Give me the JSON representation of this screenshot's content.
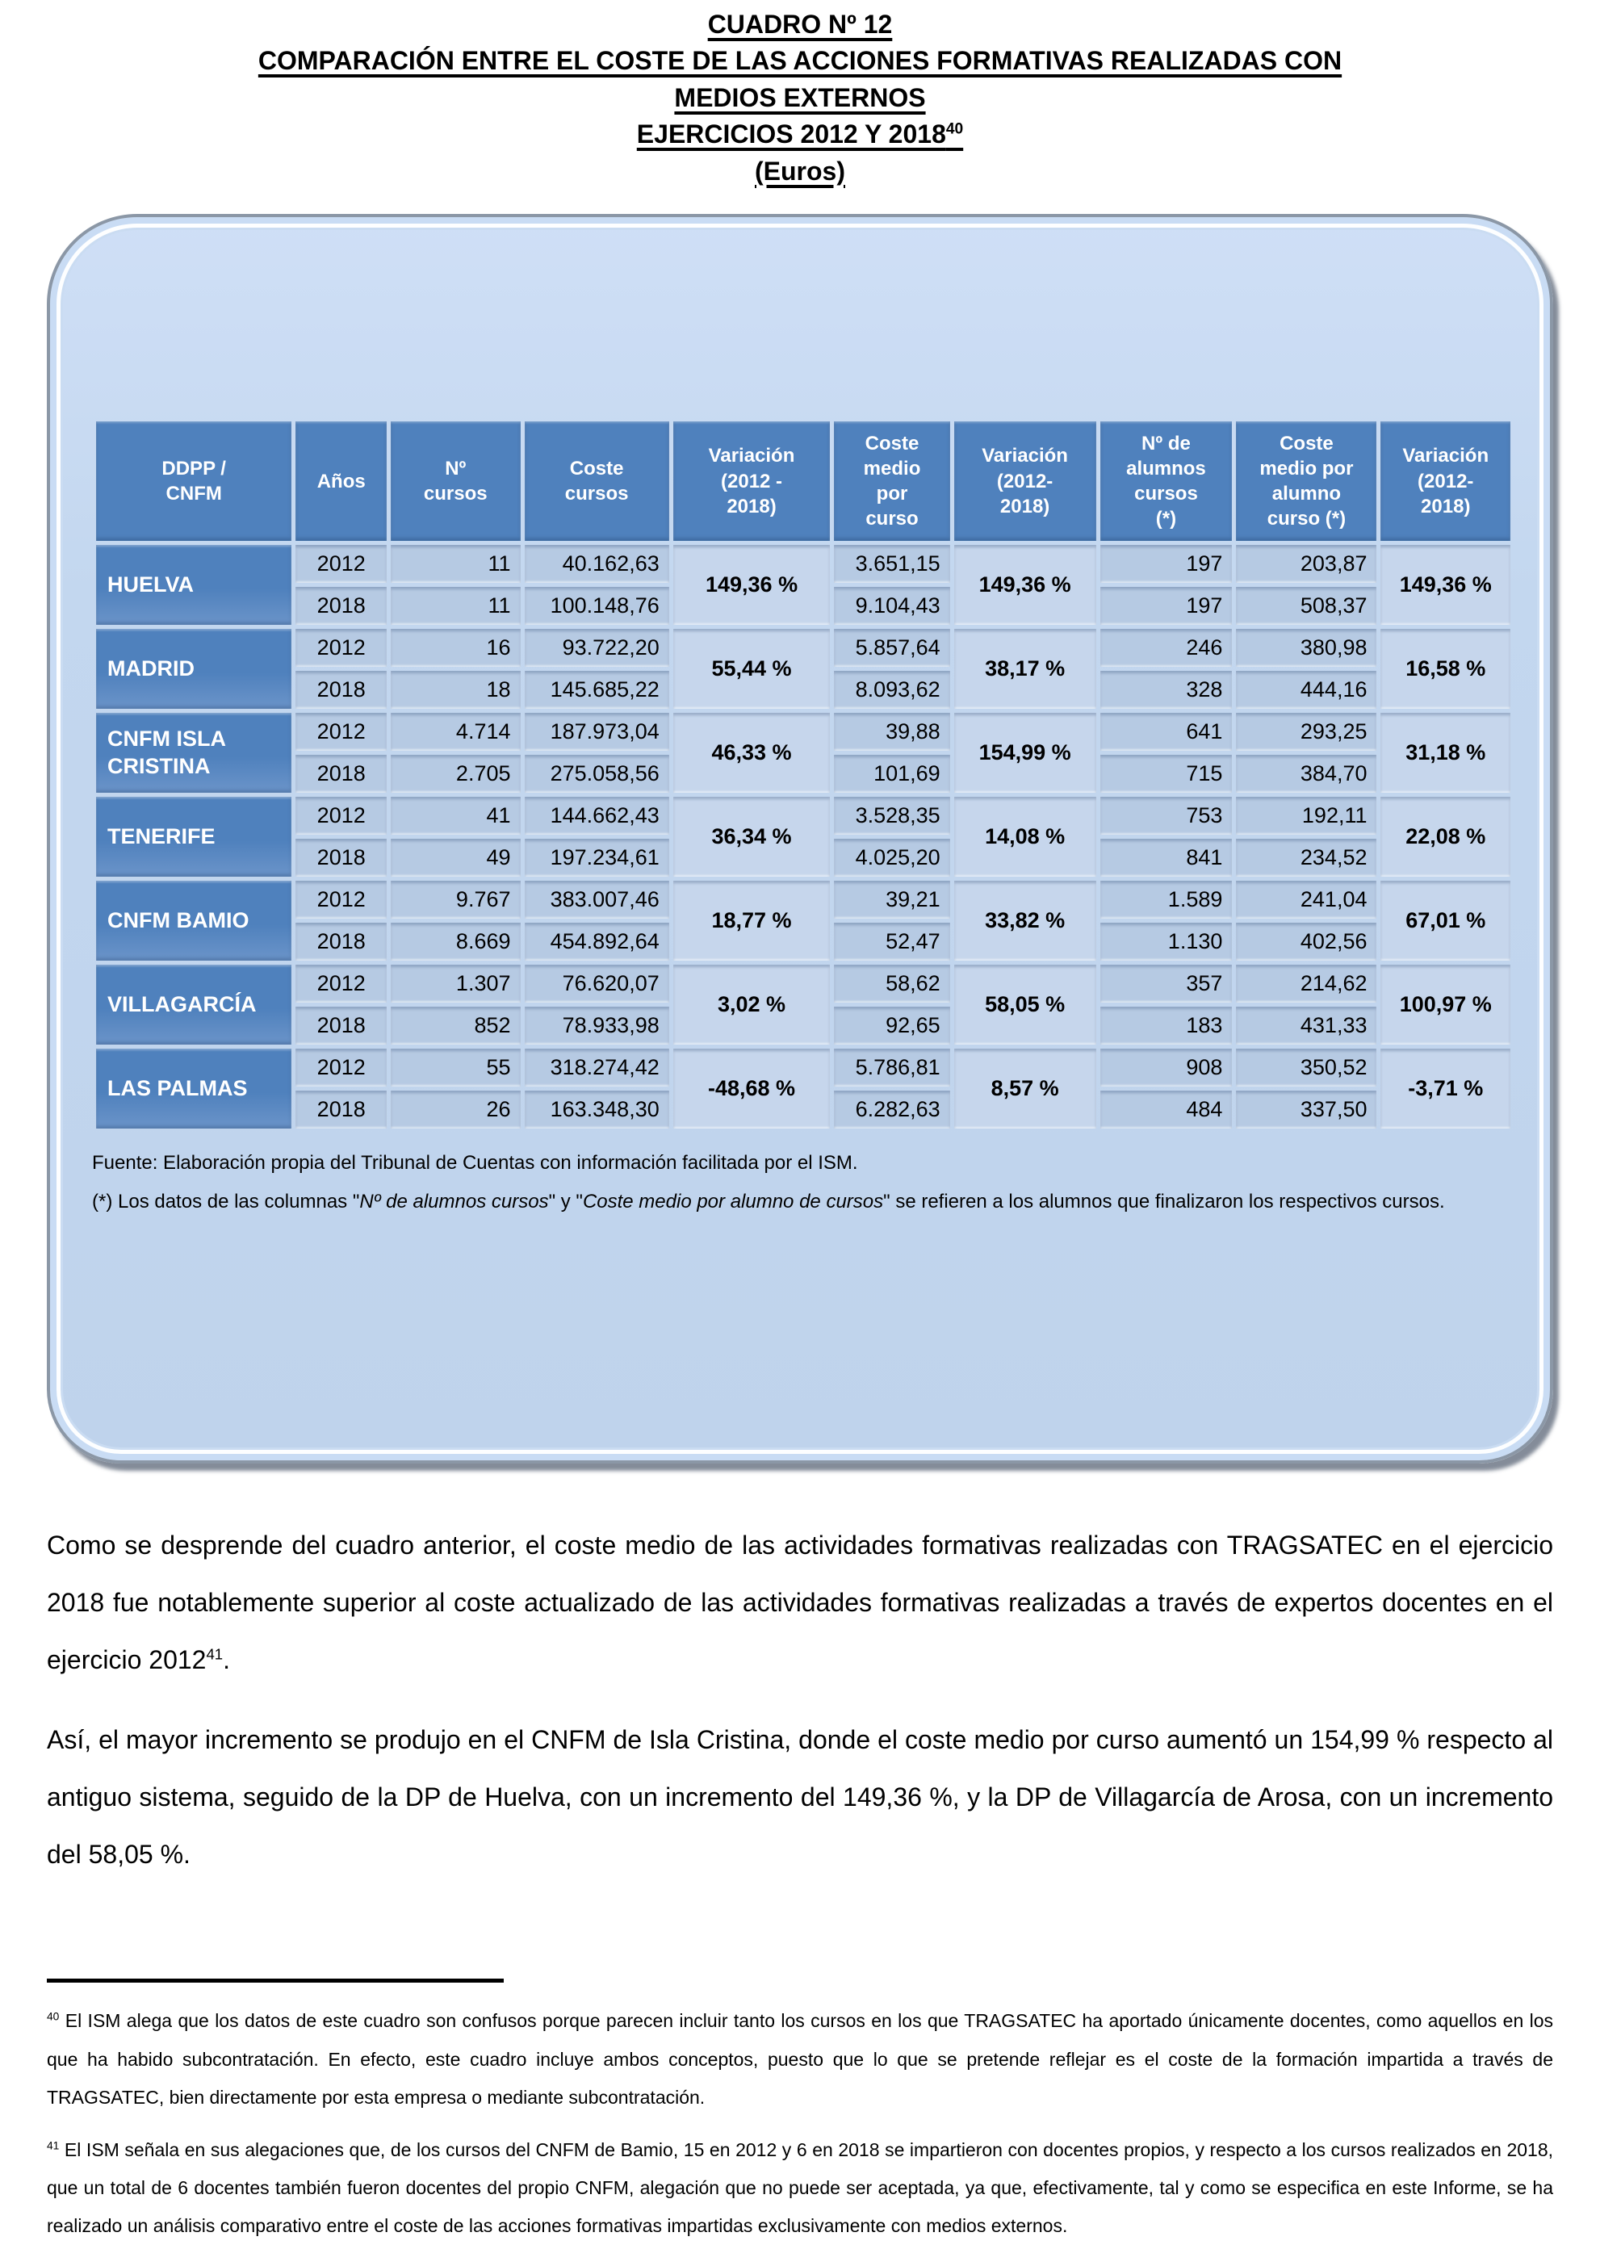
{
  "title": {
    "lines": [
      "CUADRO Nº 12",
      "COMPARACIÓN ENTRE EL COSTE DE LAS ACCIONES FORMATIVAS REALIZADAS CON",
      "MEDIOS EXTERNOS",
      "EJERCICIOS 2012 Y 2018",
      "(Euros)"
    ],
    "footnote_ref": "40"
  },
  "colors": {
    "header_blue": "#4f81bd",
    "row_label_blue": "#5584c1",
    "cell_blue": "#b6cae3",
    "variation_blue": "#c6d6ec",
    "panel_fill": "#c3d7ef",
    "panel_border": "#8b97a6"
  },
  "table": {
    "headers": [
      "DDPP /\nCNFM",
      "Años",
      "Nº\ncursos",
      "Coste\ncursos",
      "Variación\n(2012 -\n2018)",
      "Coste\nmedio\npor\ncurso",
      "Variación\n(2012-\n2018)",
      "Nº de\nalumnos\ncursos\n(*)",
      "Coste\nmedio por\nalumno\ncurso (*)",
      "Variación\n(2012-\n2018)"
    ],
    "rows": [
      {
        "name": "HUELVA",
        "var_coste": "149,36 %",
        "var_medio": "149,36 %",
        "var_alumno": "149,36 %",
        "years": [
          {
            "año": "2012",
            "n_cursos": "11",
            "coste_cursos": "40.162,63",
            "coste_medio": "3.651,15",
            "alumnos": "197",
            "coste_alumno": "203,87"
          },
          {
            "año": "2018",
            "n_cursos": "11",
            "coste_cursos": "100.148,76",
            "coste_medio": "9.104,43",
            "alumnos": "197",
            "coste_alumno": "508,37"
          }
        ]
      },
      {
        "name": "MADRID",
        "var_coste": "55,44 %",
        "var_medio": "38,17 %",
        "var_alumno": "16,58 %",
        "years": [
          {
            "año": "2012",
            "n_cursos": "16",
            "coste_cursos": "93.722,20",
            "coste_medio": "5.857,64",
            "alumnos": "246",
            "coste_alumno": "380,98"
          },
          {
            "año": "2018",
            "n_cursos": "18",
            "coste_cursos": "145.685,22",
            "coste_medio": "8.093,62",
            "alumnos": "328",
            "coste_alumno": "444,16"
          }
        ]
      },
      {
        "name": "CNFM ISLA CRISTINA",
        "var_coste": "46,33 %",
        "var_medio": "154,99 %",
        "var_alumno": "31,18 %",
        "years": [
          {
            "año": "2012",
            "n_cursos": "4.714",
            "coste_cursos": "187.973,04",
            "coste_medio": "39,88",
            "alumnos": "641",
            "coste_alumno": "293,25"
          },
          {
            "año": "2018",
            "n_cursos": "2.705",
            "coste_cursos": "275.058,56",
            "coste_medio": "101,69",
            "alumnos": "715",
            "coste_alumno": "384,70"
          }
        ]
      },
      {
        "name": "TENERIFE",
        "var_coste": "36,34 %",
        "var_medio": "14,08 %",
        "var_alumno": "22,08 %",
        "years": [
          {
            "año": "2012",
            "n_cursos": "41",
            "coste_cursos": "144.662,43",
            "coste_medio": "3.528,35",
            "alumnos": "753",
            "coste_alumno": "192,11"
          },
          {
            "año": "2018",
            "n_cursos": "49",
            "coste_cursos": "197.234,61",
            "coste_medio": "4.025,20",
            "alumnos": "841",
            "coste_alumno": "234,52"
          }
        ]
      },
      {
        "name": "CNFM BAMIO",
        "var_coste": "18,77 %",
        "var_medio": "33,82 %",
        "var_alumno": "67,01 %",
        "years": [
          {
            "año": "2012",
            "n_cursos": "9.767",
            "coste_cursos": "383.007,46",
            "coste_medio": "39,21",
            "alumnos": "1.589",
            "coste_alumno": "241,04"
          },
          {
            "año": "2018",
            "n_cursos": "8.669",
            "coste_cursos": "454.892,64",
            "coste_medio": "52,47",
            "alumnos": "1.130",
            "coste_alumno": "402,56"
          }
        ]
      },
      {
        "name": "VILLAGARCÍA",
        "var_coste": "3,02 %",
        "var_medio": "58,05 %",
        "var_alumno": "100,97 %",
        "years": [
          {
            "año": "2012",
            "n_cursos": "1.307",
            "coste_cursos": "76.620,07",
            "coste_medio": "58,62",
            "alumnos": "357",
            "coste_alumno": "214,62"
          },
          {
            "año": "2018",
            "n_cursos": "852",
            "coste_cursos": "78.933,98",
            "coste_medio": "92,65",
            "alumnos": "183",
            "coste_alumno": "431,33"
          }
        ]
      },
      {
        "name": "LAS PALMAS",
        "var_coste": "-48,68 %",
        "var_medio": "8,57 %",
        "var_alumno": "-3,71 %",
        "years": [
          {
            "año": "2012",
            "n_cursos": "55",
            "coste_cursos": "318.274,42",
            "coste_medio": "5.786,81",
            "alumnos": "908",
            "coste_alumno": "350,52"
          },
          {
            "año": "2018",
            "n_cursos": "26",
            "coste_cursos": "163.348,30",
            "coste_medio": "6.282,63",
            "alumnos": "484",
            "coste_alumno": "337,50"
          }
        ]
      }
    ]
  },
  "notes": {
    "fuente": "Fuente: Elaboración propia del Tribunal de Cuentas con información facilitada por el ISM.",
    "asterisco_parts": {
      "p1": "(*) Los datos de las columnas \"",
      "i1": "Nº de alumnos cursos",
      "p2": "\" y \"",
      "i2": "Coste medio por alumno de cursos",
      "p3": "\" se refieren a los alumnos que finalizaron los respectivos cursos."
    }
  },
  "paragraphs": {
    "p1_text": "Como se desprende del cuadro anterior, el coste medio de las actividades formativas realizadas con TRAGSATEC en el ejercicio 2018 fue notablemente superior al coste actualizado de las actividades formativas realizadas a través de expertos docentes en el ejercicio 2012",
    "p1_sup": "41",
    "p1_after": ".",
    "p2_text": "Así, el mayor incremento se produjo en el CNFM de Isla Cristina, donde el coste medio por curso aumentó un 154,99 % respecto al antiguo sistema, seguido de la DP de Huelva, con un incremento del 149,36 %, y la DP de Villagarcía de Arosa, con un incremento del 58,05 %."
  },
  "footnotes": [
    {
      "sup": "40",
      "text": "El ISM alega que los datos de este cuadro son confusos porque parecen incluir tanto los cursos en los que TRAGSATEC ha aportado únicamente docentes, como aquellos en los que ha habido subcontratación. En efecto, este cuadro incluye ambos conceptos, puesto que lo que se pretende reflejar es el coste de la formación impartida a través de TRAGSATEC, bien directamente por esta empresa o mediante subcontratación."
    },
    {
      "sup": "41",
      "text": "El ISM señala en sus alegaciones que, de los cursos del CNFM de Bamio, 15 en 2012 y 6 en 2018 se impartieron con docentes propios, y respecto a los cursos realizados en 2018, que un total de 6 docentes también fueron docentes del propio CNFM, alegación que no puede ser aceptada, ya que, efectivamente, tal y como se especifica en este Informe, se ha realizado un análisis comparativo entre el coste de las acciones formativas impartidas exclusivamente con medios externos."
    }
  ]
}
